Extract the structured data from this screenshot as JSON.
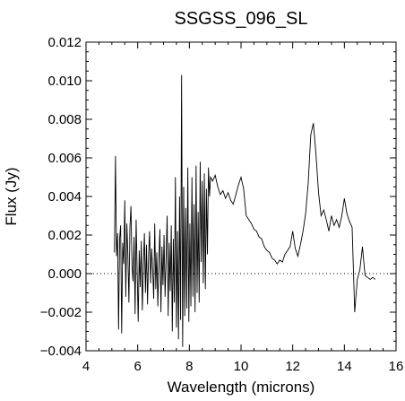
{
  "chart_data": {
    "type": "line",
    "title": "SSGSS_096_SL",
    "xlabel": "Wavelength (microns)",
    "ylabel": "Flux (Jy)",
    "xlim": [
      4,
      16
    ],
    "ylim": [
      -0.004,
      0.012
    ],
    "x_ticks": [
      4,
      6,
      8,
      10,
      12,
      14,
      16
    ],
    "x_tick_labels": [
      "4",
      "6",
      "8",
      "10",
      "12",
      "14",
      "16"
    ],
    "y_ticks": [
      -0.004,
      -0.002,
      0.0,
      0.002,
      0.004,
      0.006,
      0.008,
      0.01,
      0.012
    ],
    "y_tick_labels": [
      "−0.004",
      "−0.002",
      "0.000",
      "0.002",
      "0.004",
      "0.006",
      "0.008",
      "0.010",
      "0.012"
    ],
    "zero_line": 0.0,
    "grid": false,
    "legend": "none",
    "series": [
      {
        "x": [
          5.1,
          5.14,
          5.18,
          5.22,
          5.26,
          5.3,
          5.34,
          5.38,
          5.42,
          5.46,
          5.5,
          5.54,
          5.58,
          5.62,
          5.66,
          5.7,
          5.74,
          5.78,
          5.82,
          5.86,
          5.9,
          5.94,
          5.98,
          6.02,
          6.06,
          6.1,
          6.14,
          6.18,
          6.22,
          6.26,
          6.3,
          6.34,
          6.38,
          6.42,
          6.46,
          6.5,
          6.54,
          6.58,
          6.62,
          6.66,
          6.7,
          6.74,
          6.78,
          6.82,
          6.86,
          6.9,
          6.94,
          6.98,
          7.02,
          7.06,
          7.1,
          7.14,
          7.18,
          7.22,
          7.26,
          7.3,
          7.34,
          7.38,
          7.42,
          7.46,
          7.5,
          7.54,
          7.58,
          7.62,
          7.66,
          7.7,
          7.74,
          7.78,
          7.82,
          7.86,
          7.9,
          7.94,
          7.98,
          8.02,
          8.06,
          8.1,
          8.14,
          8.18,
          8.22,
          8.26,
          8.3,
          8.34,
          8.38,
          8.42,
          8.46,
          8.5,
          8.54,
          8.58,
          8.62,
          8.66,
          8.7,
          8.74,
          8.78,
          8.82,
          8.9,
          9.0,
          9.1,
          9.2,
          9.3,
          9.4,
          9.5,
          9.6,
          9.7,
          9.8,
          9.9,
          10.0,
          10.1,
          10.2,
          10.3,
          10.4,
          10.5,
          10.6,
          10.7,
          10.8,
          10.9,
          11.0,
          11.1,
          11.2,
          11.3,
          11.4,
          11.5,
          11.6,
          11.7,
          11.8,
          11.9,
          12.0,
          12.1,
          12.2,
          12.3,
          12.4,
          12.5,
          12.6,
          12.7,
          12.8,
          12.9,
          13.0,
          13.1,
          13.2,
          13.3,
          13.4,
          13.5,
          13.6,
          13.7,
          13.8,
          13.9,
          14.0,
          14.1,
          14.2,
          14.3,
          14.4,
          14.5,
          14.6,
          14.7,
          14.8,
          14.9,
          15.0,
          15.1,
          15.2
        ],
        "y": [
          0.0011,
          0.0061,
          0.0009,
          0.0021,
          -0.0029,
          0.0018,
          0.0025,
          -0.0031,
          0.0016,
          0.0005,
          0.0038,
          -0.0012,
          0.0026,
          0.001,
          -0.0015,
          0.0024,
          0.0035,
          0.0004,
          -0.0004,
          0.0019,
          -0.0021,
          0.0028,
          0.0001,
          -0.0025,
          0.0012,
          -0.0007,
          0.0017,
          -0.0019,
          0.0004,
          0.0021,
          -0.001,
          0.0015,
          -0.0016,
          0.0009,
          0.0022,
          -0.0005,
          0.0013,
          0.0002,
          -0.0013,
          0.0026,
          -0.0008,
          0.0011,
          -0.0017,
          0.0007,
          0.0023,
          -0.002,
          0.0014,
          -0.0006,
          0.002,
          -0.0012,
          0.0008,
          0.003,
          -0.0022,
          0.0016,
          -0.0009,
          0.0025,
          -0.003,
          0.0018,
          -0.0015,
          0.005,
          -0.0028,
          0.0022,
          -0.0034,
          0.004,
          -0.0024,
          0.0103,
          -0.0038,
          0.0045,
          -0.0022,
          0.0034,
          -0.0018,
          0.0055,
          -0.0025,
          0.0026,
          -0.0017,
          0.005,
          -0.0012,
          0.0036,
          -0.002,
          0.0056,
          -0.001,
          0.0032,
          -0.0015,
          0.0058,
          0.0006,
          0.0048,
          -0.0005,
          0.0052,
          -0.0008,
          0.0044,
          0.001,
          0.0055,
          0.004,
          0.005,
          0.0048,
          0.0051,
          0.0045,
          0.0041,
          0.0043,
          0.0039,
          0.0042,
          0.0038,
          0.0036,
          0.0041,
          0.0046,
          0.005,
          0.0044,
          0.003,
          0.0028,
          0.0026,
          0.0023,
          0.0022,
          0.0019,
          0.0018,
          0.0014,
          0.0012,
          0.0011,
          0.0008,
          0.0007,
          0.0005,
          0.0007,
          0.0006,
          0.001,
          0.0012,
          0.0014,
          0.0022,
          0.0013,
          0.0009,
          0.0015,
          0.0022,
          0.0031,
          0.0047,
          0.0072,
          0.0078,
          0.0062,
          0.0042,
          0.003,
          0.0033,
          0.0028,
          0.0022,
          0.003,
          0.0025,
          0.0028,
          0.0024,
          0.003,
          0.0039,
          0.0031,
          0.0027,
          0.0024,
          -0.002,
          -0.0003,
          0.0002,
          0.0014,
          -0.0001,
          -0.0002,
          -0.0003,
          -0.0002,
          -0.0003
        ]
      }
    ]
  }
}
